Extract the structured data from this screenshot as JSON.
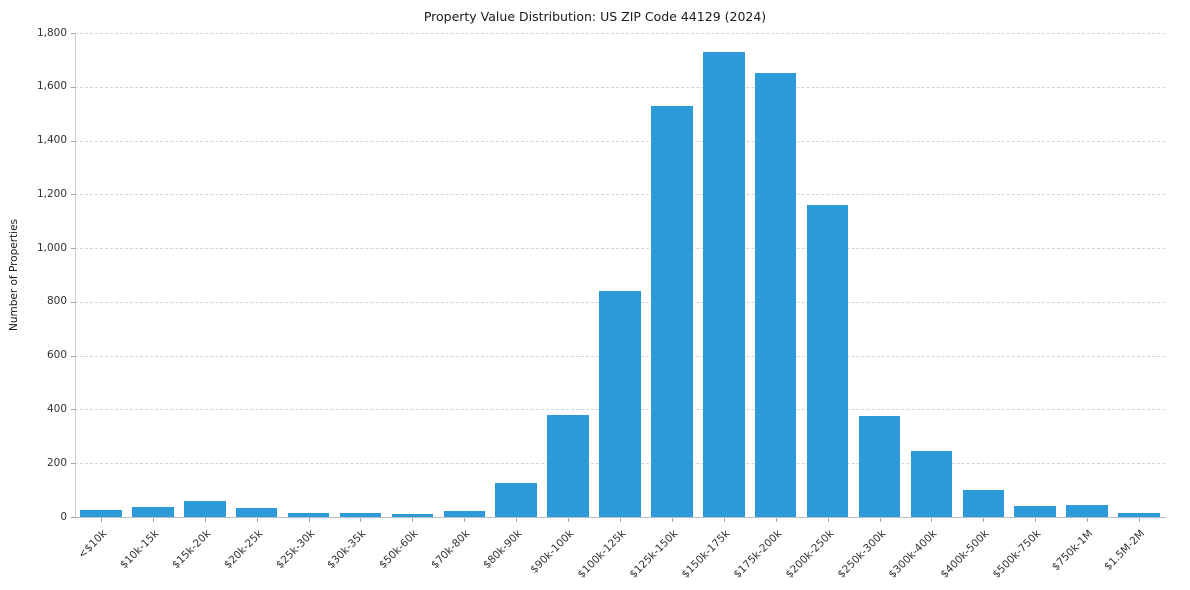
{
  "chart_data": {
    "type": "bar",
    "title": "Property Value Distribution: US ZIP Code 44129 (2024)",
    "xlabel": "",
    "ylabel": "Number of Properties",
    "categories": [
      "<$10k",
      "$10k-15k",
      "$15k-20k",
      "$20k-25k",
      "$25k-30k",
      "$30k-35k",
      "$50k-60k",
      "$70k-80k",
      "$80k-90k",
      "$90k-100k",
      "$100k-125k",
      "$125k-150k",
      "$150k-175k",
      "$175k-200k",
      "$200k-250k",
      "$250k-300k",
      "$300k-400k",
      "$400k-500k",
      "$500k-750k",
      "$750k-1M",
      "$1.5M-2M"
    ],
    "values": [
      25,
      38,
      60,
      35,
      15,
      15,
      10,
      22,
      125,
      380,
      840,
      1530,
      1730,
      1650,
      1160,
      375,
      245,
      100,
      40,
      45,
      15
    ],
    "ylim": [
      0,
      1800
    ],
    "ytick_interval": 200,
    "ytick_labels": [
      "0",
      "200",
      "400",
      "600",
      "800",
      "1,000",
      "1,200",
      "1,400",
      "1,600",
      "1,800"
    ],
    "grid": "horizontal-dashed",
    "legend": "none",
    "bar_color": "#2d9bd9",
    "grid_color": "#ccd6dd"
  }
}
